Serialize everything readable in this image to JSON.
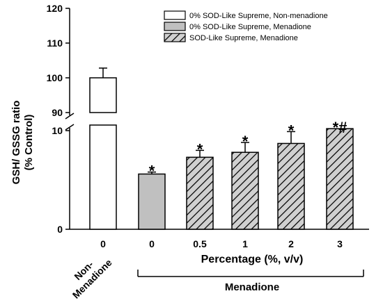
{
  "chart_data": {
    "type": "bar",
    "title": "",
    "ylabel_line1": "GSH/ GSSG ratio",
    "ylabel_line2": "(% Control)",
    "xlabel": "Percentage (%, v/v)",
    "group_label": "Menadione",
    "axis_break": true,
    "y_upper_ticks": [
      "90",
      "100",
      "110",
      "120"
    ],
    "y_upper_range": [
      90,
      120
    ],
    "y_lower_ticks": [
      "0",
      "10"
    ],
    "y_lower_range": [
      0,
      10
    ],
    "categories": [
      "0",
      "0",
      "0.5",
      "1",
      "2",
      "3"
    ],
    "non_menadione_label_line1": "Non-",
    "non_menadione_label_line2": "Menadione",
    "bars": [
      {
        "category": "0",
        "series": 0,
        "value": 100,
        "error": 2.8,
        "mark": ""
      },
      {
        "category": "0",
        "series": 1,
        "value": 5.6,
        "error": 0.2,
        "mark": "*"
      },
      {
        "category": "0.5",
        "series": 2,
        "value": 7.3,
        "error": 0.7,
        "mark": "*"
      },
      {
        "category": "1",
        "series": 2,
        "value": 7.8,
        "error": 1.0,
        "mark": "*"
      },
      {
        "category": "2",
        "series": 2,
        "value": 8.7,
        "error": 1.2,
        "mark": "*"
      },
      {
        "category": "3",
        "series": 2,
        "value": 10.2,
        "error": 0,
        "mark": "*#"
      }
    ],
    "series": [
      {
        "name": "0% SOD-Like Supreme, Non-menadione",
        "fill": "#ffffff",
        "pattern": "none"
      },
      {
        "name": "0% SOD-Like Supreme, Menadione",
        "fill": "#c0c0c0",
        "pattern": "none"
      },
      {
        "name": "SOD-Like Supreme, Menadione",
        "fill": "#d0d0d0",
        "pattern": "hatch"
      }
    ],
    "legend_position": "top-right",
    "grid": false
  }
}
